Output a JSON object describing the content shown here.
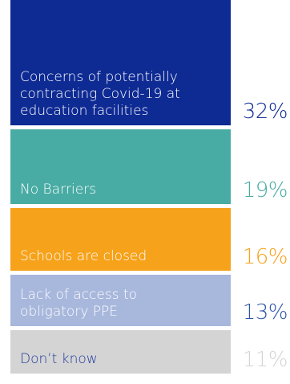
{
  "chart_data": {
    "type": "bar",
    "title": "",
    "unit": "%",
    "categories": [
      "Concerns of potentially contracting Covid-19 at education facilities",
      "No Barriers",
      "Schools are closed",
      "Lack of access to obligatory PPE",
      "Don’t know"
    ],
    "values": [
      32,
      19,
      16,
      13,
      11
    ],
    "value_labels": [
      "32%",
      "19%",
      "16%",
      "13%",
      "11%"
    ],
    "colors": {
      "block": [
        "#0e2a93",
        "#49aca4",
        "#f6a21b",
        "#a8b7dc",
        "#d4d4d4"
      ],
      "label_text": [
        "#ffffff",
        "#ffffff",
        "#ffffff",
        "#ffffff",
        "#1f3a9b"
      ],
      "value_text": [
        "#0e2a93",
        "#49aca4",
        "#f6a21b",
        "#2d55a4",
        "#d4d4d4"
      ]
    }
  }
}
